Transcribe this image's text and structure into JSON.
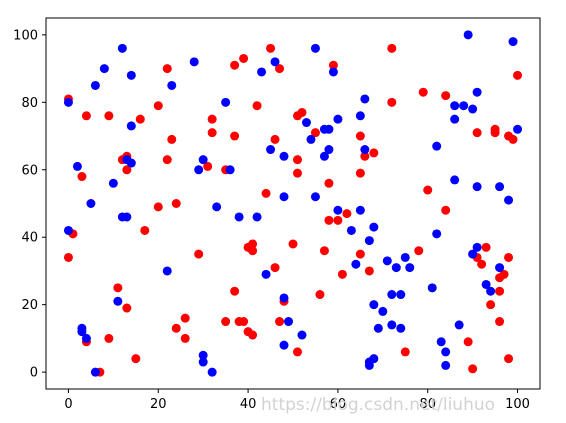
{
  "chart_data": {
    "type": "scatter",
    "xlim": [
      -5,
      105
    ],
    "ylim": [
      -5,
      105
    ],
    "xticks": [
      0,
      20,
      40,
      60,
      80,
      100
    ],
    "yticks": [
      0,
      20,
      40,
      60,
      80,
      100
    ],
    "grid": false,
    "legend": "none",
    "series": [
      {
        "color": "#ff0000",
        "points": [
          [
            0,
            81
          ],
          [
            0,
            34
          ],
          [
            1,
            41
          ],
          [
            3,
            58
          ],
          [
            4,
            76
          ],
          [
            4,
            9
          ],
          [
            7,
            0
          ],
          [
            9,
            76
          ],
          [
            9,
            10
          ],
          [
            11,
            25
          ],
          [
            12,
            63
          ],
          [
            13,
            19
          ],
          [
            13,
            60
          ],
          [
            13,
            64
          ],
          [
            15,
            4
          ],
          [
            16,
            75
          ],
          [
            17,
            42
          ],
          [
            20,
            49
          ],
          [
            20,
            79
          ],
          [
            22,
            90
          ],
          [
            22,
            63
          ],
          [
            23,
            69
          ],
          [
            24,
            50
          ],
          [
            24,
            13
          ],
          [
            26,
            16
          ],
          [
            26,
            10
          ],
          [
            29,
            35
          ],
          [
            31,
            61
          ],
          [
            32,
            75
          ],
          [
            32,
            71
          ],
          [
            35,
            60
          ],
          [
            35,
            15
          ],
          [
            37,
            91
          ],
          [
            37,
            70
          ],
          [
            37,
            24
          ],
          [
            38,
            15
          ],
          [
            39,
            93
          ],
          [
            39,
            15
          ],
          [
            40,
            37
          ],
          [
            40,
            12
          ],
          [
            41,
            36
          ],
          [
            41,
            38
          ],
          [
            41,
            11
          ],
          [
            42,
            79
          ],
          [
            44,
            53
          ],
          [
            45,
            96
          ],
          [
            46,
            69
          ],
          [
            46,
            31
          ],
          [
            47,
            90
          ],
          [
            47,
            15
          ],
          [
            48,
            21
          ],
          [
            50,
            38
          ],
          [
            51,
            76
          ],
          [
            51,
            63
          ],
          [
            51,
            59
          ],
          [
            51,
            6
          ],
          [
            52,
            77
          ],
          [
            55,
            71
          ],
          [
            56,
            23
          ],
          [
            57,
            36
          ],
          [
            58,
            56
          ],
          [
            58,
            45
          ],
          [
            59,
            91
          ],
          [
            60,
            45
          ],
          [
            61,
            29
          ],
          [
            62,
            47
          ],
          [
            65,
            70
          ],
          [
            65,
            59
          ],
          [
            65,
            35
          ],
          [
            66,
            64
          ],
          [
            67,
            30
          ],
          [
            68,
            65
          ],
          [
            72,
            96
          ],
          [
            72,
            80
          ],
          [
            75,
            6
          ],
          [
            78,
            36
          ],
          [
            79,
            83
          ],
          [
            80,
            54
          ],
          [
            84,
            82
          ],
          [
            84,
            48
          ],
          [
            89,
            9
          ],
          [
            90,
            1
          ],
          [
            91,
            71
          ],
          [
            91,
            34
          ],
          [
            92,
            32
          ],
          [
            93,
            37
          ],
          [
            94,
            20
          ],
          [
            95,
            72
          ],
          [
            95,
            71
          ],
          [
            96,
            28
          ],
          [
            96,
            24
          ],
          [
            96,
            15
          ],
          [
            97,
            29
          ],
          [
            98,
            70
          ],
          [
            98,
            34
          ],
          [
            98,
            4
          ],
          [
            99,
            69
          ],
          [
            100,
            88
          ]
        ]
      },
      {
        "color": "#0000ff",
        "points": [
          [
            0,
            80
          ],
          [
            0,
            42
          ],
          [
            2,
            61
          ],
          [
            3,
            13
          ],
          [
            3,
            12
          ],
          [
            4,
            10
          ],
          [
            5,
            50
          ],
          [
            6,
            85
          ],
          [
            6,
            0
          ],
          [
            8,
            90
          ],
          [
            10,
            56
          ],
          [
            11,
            21
          ],
          [
            12,
            96
          ],
          [
            12,
            46
          ],
          [
            13,
            46
          ],
          [
            13,
            63
          ],
          [
            14,
            88
          ],
          [
            14,
            73
          ],
          [
            14,
            62
          ],
          [
            22,
            30
          ],
          [
            23,
            85
          ],
          [
            28,
            92
          ],
          [
            29,
            60
          ],
          [
            30,
            63
          ],
          [
            30,
            5
          ],
          [
            30,
            3
          ],
          [
            32,
            0
          ],
          [
            33,
            49
          ],
          [
            35,
            80
          ],
          [
            36,
            60
          ],
          [
            38,
            46
          ],
          [
            42,
            46
          ],
          [
            43,
            89
          ],
          [
            44,
            29
          ],
          [
            45,
            66
          ],
          [
            46,
            92
          ],
          [
            48,
            64
          ],
          [
            48,
            52
          ],
          [
            48,
            22
          ],
          [
            48,
            8
          ],
          [
            49,
            15
          ],
          [
            52,
            11
          ],
          [
            53,
            74
          ],
          [
            54,
            69
          ],
          [
            55,
            96
          ],
          [
            55,
            52
          ],
          [
            57,
            72
          ],
          [
            57,
            64
          ],
          [
            58,
            72
          ],
          [
            58,
            66
          ],
          [
            59,
            89
          ],
          [
            60,
            48
          ],
          [
            60,
            75
          ],
          [
            63,
            42
          ],
          [
            64,
            32
          ],
          [
            65,
            76
          ],
          [
            65,
            48
          ],
          [
            66,
            81
          ],
          [
            66,
            66
          ],
          [
            67,
            39
          ],
          [
            67,
            3
          ],
          [
            67,
            2
          ],
          [
            68,
            43
          ],
          [
            68,
            20
          ],
          [
            68,
            4
          ],
          [
            69,
            13
          ],
          [
            70,
            18
          ],
          [
            71,
            33
          ],
          [
            72,
            23
          ],
          [
            72,
            14
          ],
          [
            73,
            31
          ],
          [
            74,
            23
          ],
          [
            74,
            13
          ],
          [
            75,
            34
          ],
          [
            76,
            31
          ],
          [
            81,
            25
          ],
          [
            82,
            67
          ],
          [
            82,
            41
          ],
          [
            83,
            9
          ],
          [
            84,
            6
          ],
          [
            84,
            2
          ],
          [
            86,
            79
          ],
          [
            86,
            75
          ],
          [
            86,
            57
          ],
          [
            87,
            14
          ],
          [
            88,
            79
          ],
          [
            89,
            100
          ],
          [
            90,
            78
          ],
          [
            90,
            35
          ],
          [
            91,
            83
          ],
          [
            91,
            55
          ],
          [
            91,
            37
          ],
          [
            93,
            26
          ],
          [
            94,
            24
          ],
          [
            96,
            55
          ],
          [
            96,
            31
          ],
          [
            98,
            51
          ],
          [
            99,
            98
          ],
          [
            100,
            72
          ]
        ]
      }
    ]
  },
  "watermark": "https://blog.csdn.net/liuhuo"
}
